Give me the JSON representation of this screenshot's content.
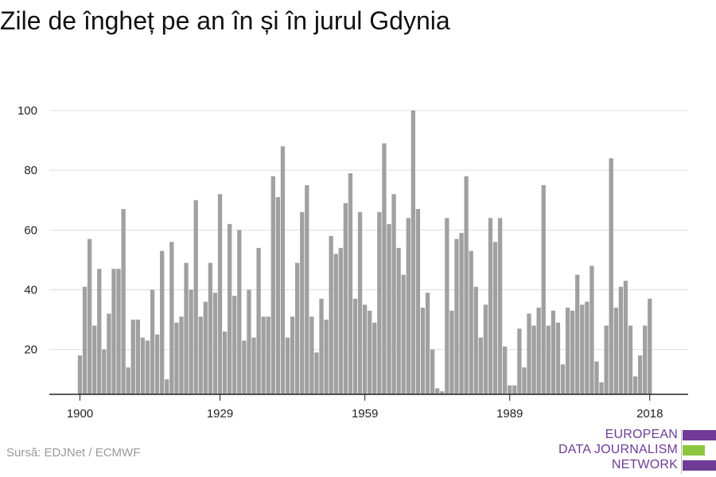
{
  "title": "Zile de îngheț pe an în și în jurul Gdynia",
  "source": "Sursă: EDJNet / ECMWF",
  "logo": {
    "lines": [
      "EUROPEAN",
      "DATA JOURNALISM",
      "NETWORK"
    ],
    "colors": {
      "purple": "#6f3b96",
      "green": "#8dc63f"
    }
  },
  "chart_data": {
    "type": "bar",
    "title": "Zile de îngheț pe an în și în jurul Gdynia",
    "xlabel": "",
    "ylabel": "",
    "x_start": 1900,
    "x_end": 2018,
    "x_ticks": [
      1900,
      1929,
      1959,
      1989,
      2018
    ],
    "y_ticks": [
      20,
      40,
      60,
      80,
      100
    ],
    "ylim": [
      5,
      100
    ],
    "grid": true,
    "bar_color": "#a0a0a0",
    "values": [
      18,
      41,
      57,
      28,
      47,
      20,
      32,
      47,
      47,
      67,
      14,
      30,
      30,
      24,
      23,
      40,
      25,
      53,
      10,
      56,
      29,
      31,
      49,
      40,
      70,
      31,
      36,
      49,
      39,
      72,
      26,
      62,
      38,
      60,
      23,
      40,
      24,
      54,
      31,
      31,
      78,
      71,
      88,
      24,
      31,
      49,
      66,
      75,
      31,
      19,
      37,
      30,
      58,
      52,
      54,
      69,
      79,
      37,
      66,
      35,
      33,
      29,
      66,
      89,
      62,
      72,
      54,
      45,
      64,
      100,
      67,
      34,
      39,
      20,
      7,
      6,
      64,
      33,
      57,
      59,
      78,
      53,
      41,
      24,
      35,
      64,
      56,
      64,
      21,
      8,
      8,
      27,
      14,
      32,
      28,
      34,
      75,
      28,
      33,
      29,
      15,
      34,
      33,
      45,
      35,
      36,
      48,
      16,
      9,
      28,
      84,
      34,
      41,
      43,
      28,
      11,
      18,
      28,
      37
    ]
  }
}
